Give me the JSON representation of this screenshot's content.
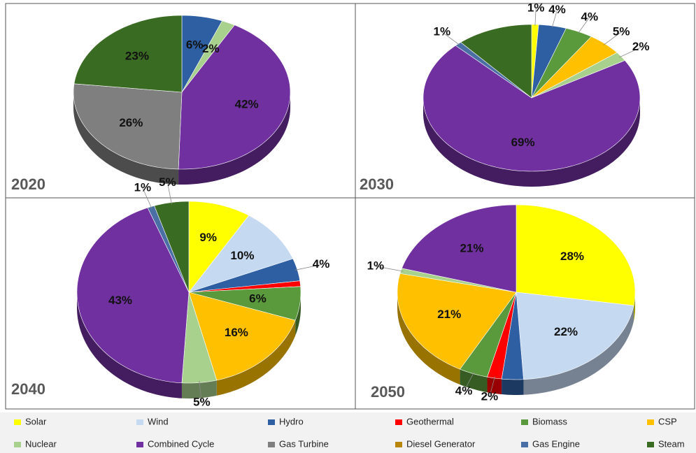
{
  "chart_data": [
    {
      "type": "pie",
      "title": "2020",
      "categories": [
        "Hydro",
        "Nuclear",
        "Combined Cycle",
        "Gas Turbine",
        "Steam"
      ],
      "values": [
        6,
        2,
        42,
        26,
        23
      ],
      "value_labels": [
        "6%",
        "2%",
        "42%",
        "26%",
        "23%"
      ]
    },
    {
      "type": "pie",
      "title": "2030",
      "categories": [
        "Solar",
        "Hydro",
        "Biomass",
        "CSP",
        "Nuclear",
        "Combined Cycle",
        "Gas Engine",
        "Steam"
      ],
      "values": [
        1,
        4,
        4,
        5,
        2,
        69,
        1,
        11
      ],
      "value_labels": [
        "1%",
        "4%",
        "4%",
        "5%",
        "2%",
        "69%",
        "1%",
        null
      ]
    },
    {
      "type": "pie",
      "title": "2040",
      "categories": [
        "Solar",
        "Wind",
        "Hydro",
        "Geothermal",
        "Biomass",
        "CSP",
        "Nuclear",
        "Combined Cycle",
        "Gas Engine",
        "Steam"
      ],
      "values": [
        9,
        10,
        4,
        1,
        6,
        16,
        5,
        43,
        1,
        5
      ],
      "value_labels": [
        "9%",
        "10%",
        "4%",
        null,
        "6%",
        "16%",
        "5%",
        "43%",
        "1%",
        "5%"
      ]
    },
    {
      "type": "pie",
      "title": "2050",
      "categories": [
        "Solar",
        "Wind",
        "Hydro",
        "Geothermal",
        "Biomass",
        "CSP",
        "Nuclear",
        "Combined Cycle"
      ],
      "values": [
        28,
        22,
        3,
        2,
        4,
        21,
        1,
        21
      ],
      "value_labels": [
        "28%",
        "22%",
        null,
        "2%",
        "4%",
        "21%",
        "1%",
        "21%"
      ]
    }
  ],
  "legend": [
    {
      "name": "Solar",
      "color": "#ffff00"
    },
    {
      "name": "Wind",
      "color": "#c5d9f1"
    },
    {
      "name": "Hydro",
      "color": "#2e5fa3"
    },
    {
      "name": "Geothermal",
      "color": "#ff0000"
    },
    {
      "name": "Biomass",
      "color": "#5a9a3c"
    },
    {
      "name": "CSP",
      "color": "#ffc000"
    },
    {
      "name": "Nuclear",
      "color": "#a9d18e"
    },
    {
      "name": "Combined Cycle",
      "color": "#7030a0"
    },
    {
      "name": "Gas Turbine",
      "color": "#7f7f7f"
    },
    {
      "name": "Diesel Generator",
      "color": "#b8860b"
    },
    {
      "name": "Gas Engine",
      "color": "#4a6fa5"
    },
    {
      "name": "Steam",
      "color": "#3a6b22"
    }
  ]
}
